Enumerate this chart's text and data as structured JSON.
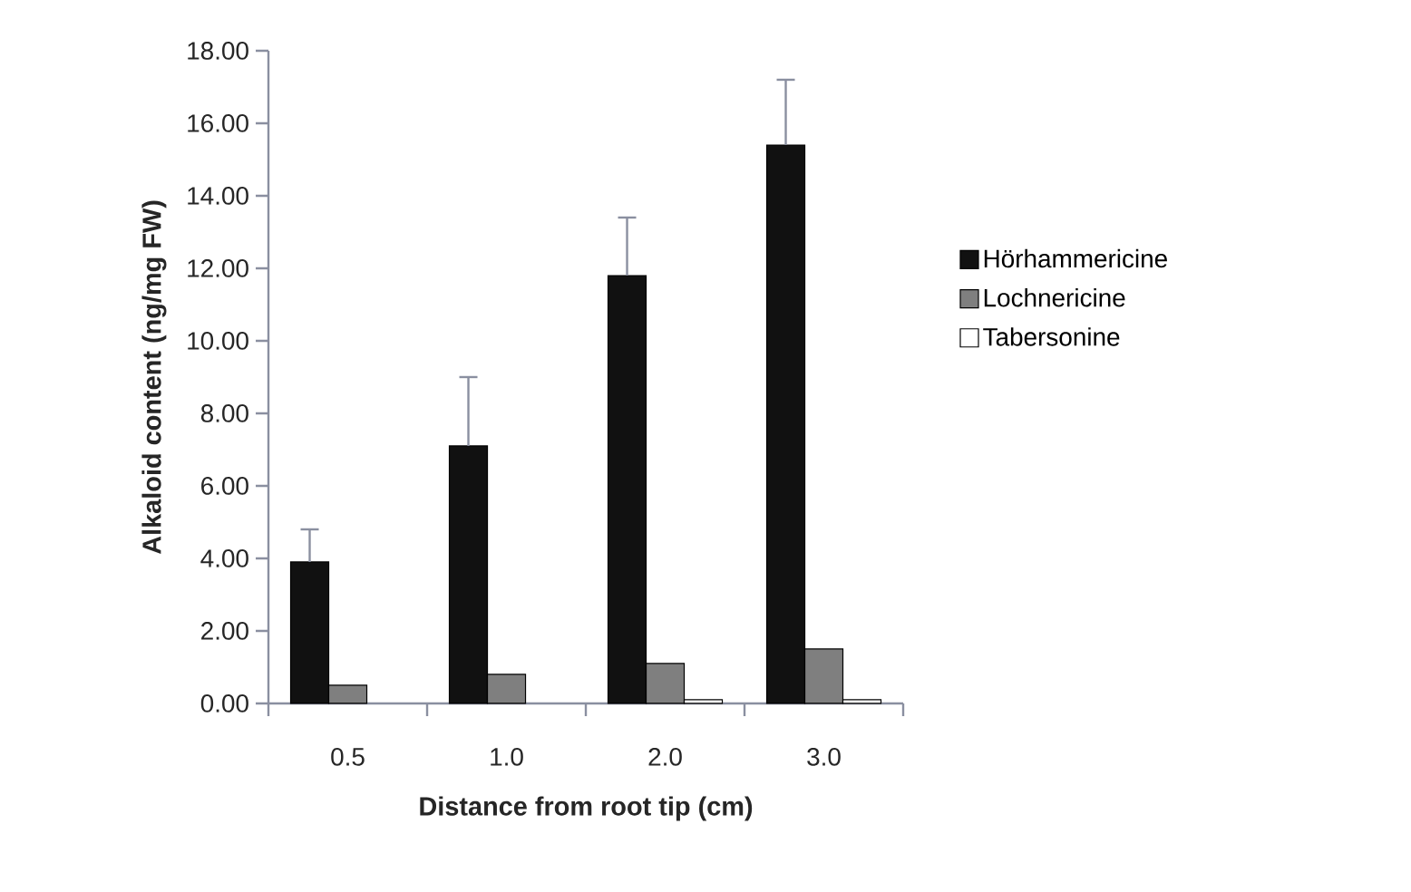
{
  "chart_data": {
    "type": "bar",
    "xlabel": "Distance from root tip (cm)",
    "ylabel": "Alkaloid content (ng/mg FW)",
    "categories": [
      "0.5",
      "1.0",
      "2.0",
      "3.0"
    ],
    "series": [
      {
        "name": "Hörhammericine",
        "color": "#111111",
        "values": [
          3.9,
          7.1,
          11.8,
          15.4
        ],
        "errors": [
          [
            3.9,
            4.8
          ],
          [
            7.1,
            9.0
          ],
          [
            11.8,
            13.4
          ],
          [
            15.4,
            17.2
          ]
        ]
      },
      {
        "name": "Lochnericine",
        "color": "#7f7f7f",
        "values": [
          0.5,
          0.8,
          1.1,
          1.5
        ]
      },
      {
        "name": "Tabersonine",
        "color": "#ffffff",
        "values": [
          null,
          null,
          0.1,
          0.1
        ]
      }
    ],
    "ylim": [
      0,
      18
    ],
    "yticks": [
      {
        "value": 0,
        "label": "0.00"
      },
      {
        "value": 2,
        "label": "2.00"
      },
      {
        "value": 4,
        "label": "4.00"
      },
      {
        "value": 6,
        "label": "6.00"
      },
      {
        "value": 8,
        "label": "8.00"
      },
      {
        "value": 10,
        "label": "10.00"
      },
      {
        "value": 12,
        "label": "12.00"
      },
      {
        "value": 14,
        "label": "14.00"
      },
      {
        "value": 16,
        "label": "16.00"
      },
      {
        "value": 18,
        "label": "18.00"
      }
    ],
    "grid": false,
    "legend": "right"
  }
}
